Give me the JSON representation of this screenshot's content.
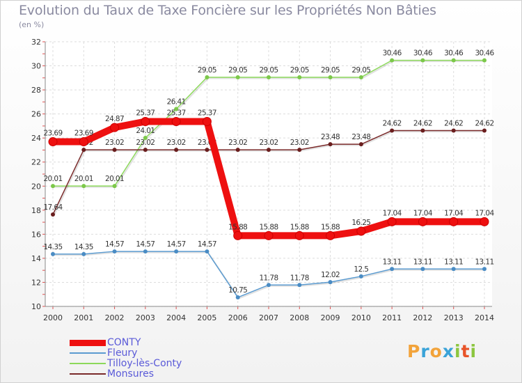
{
  "title": "Evolution du Taux de Taxe Foncière sur les Propriétés Non Bâties",
  "subtitle": "(en %)",
  "logo": {
    "letters": [
      "P",
      "r",
      "o",
      "x",
      "i",
      "t",
      "i"
    ],
    "colors": [
      "#f2a33a",
      "#3aa3d8",
      "#f2a33a",
      "#3aa3d8",
      "#8cc63f",
      "#e8542a",
      "#8cc63f"
    ]
  },
  "chart_data": {
    "type": "line",
    "title": "Evolution du Taux de Taxe Foncière sur les Propriétés Non Bâties",
    "ylabel": "(en %)",
    "categories": [
      "2000",
      "2001",
      "2002",
      "2003",
      "2004",
      "2005",
      "2006",
      "2007",
      "2008",
      "2009",
      "2010",
      "2011",
      "2012",
      "2013",
      "2014"
    ],
    "ylim": [
      10,
      32
    ],
    "yticks": [
      "10",
      "12",
      "14",
      "16",
      "18",
      "20",
      "22",
      "24",
      "26",
      "28",
      "30",
      "32"
    ],
    "grid": true,
    "series": [
      {
        "name": "Tilloy-lès-Conty",
        "color": "#8cd95a",
        "dot": "#7cc84a",
        "thick": false,
        "values": [
          20.01,
          20.01,
          20.01,
          24.01,
          26.41,
          29.05,
          29.05,
          29.05,
          29.05,
          29.05,
          29.05,
          30.46,
          30.46,
          30.46,
          30.46
        ],
        "labels": [
          "20.01",
          "20.01",
          "20.01",
          "24.01",
          "26.41",
          "29.05",
          "29.05",
          "29.05",
          "29.05",
          "29.05",
          "29.05",
          "30.46",
          "30.46",
          "30.46",
          "30.46"
        ]
      },
      {
        "name": "Monsures",
        "color": "#7a2a2a",
        "dot": "#6a1e1e",
        "thick": false,
        "values": [
          17.64,
          23.02,
          23.02,
          23.02,
          23.02,
          23.02,
          23.02,
          23.02,
          23.02,
          23.48,
          23.48,
          24.62,
          24.62,
          24.62,
          24.62
        ],
        "labels": [
          "17.64",
          "23.02",
          "23.02",
          "23.02",
          "23.02",
          "23.02",
          "23.02",
          "23.02",
          "23.02",
          "23.48",
          "23.48",
          "24.62",
          "24.62",
          "24.62",
          "24.62"
        ]
      },
      {
        "name": "Fleury",
        "color": "#5b9bd0",
        "dot": "#4a8cc4",
        "thick": false,
        "values": [
          14.35,
          14.35,
          14.57,
          14.57,
          14.57,
          14.57,
          10.75,
          11.78,
          11.78,
          12.02,
          12.5,
          13.11,
          13.11,
          13.11,
          13.11
        ],
        "labels": [
          "14.35",
          "14.35",
          "14.57",
          "14.57",
          "14.57",
          "14.57",
          "10.75",
          "11.78",
          "11.78",
          "12.02",
          "12.5",
          "13.11",
          "13.11",
          "13.11",
          "13.11"
        ]
      },
      {
        "name": "CONTY",
        "color": "#ee1010",
        "dot": "#ee1010",
        "thick": true,
        "values": [
          23.69,
          23.69,
          24.87,
          25.37,
          25.37,
          25.37,
          15.88,
          15.88,
          15.88,
          15.88,
          16.25,
          17.04,
          17.04,
          17.04,
          17.04
        ],
        "labels": [
          "23.69",
          "23.69",
          "24.87",
          "25.37",
          "25.37",
          "25.37",
          "15.88",
          "15.88",
          "15.88",
          "15.88",
          "16.25",
          "17.04",
          "17.04",
          "17.04",
          "17.04"
        ]
      }
    ],
    "legend": {
      "position": "bottom-left",
      "order": [
        "CONTY",
        "Fleury",
        "Tilloy-lès-Conty",
        "Monsures"
      ]
    }
  }
}
